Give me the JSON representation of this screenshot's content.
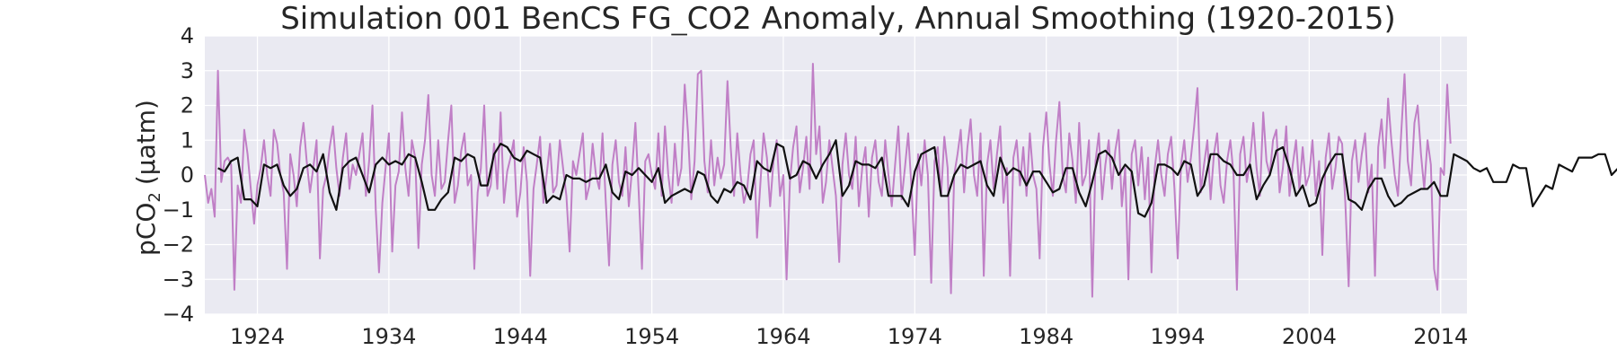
{
  "chart_data": {
    "type": "line",
    "title": "Simulation 001 BenCS FG_CO2  Anomaly, Annual Smoothing (1920-2015)",
    "ylabel": "pCO",
    "ylabel_subscript": "2",
    "ylabel_unit": "(μatm)",
    "xlabel": "",
    "xlim": [
      1920,
      2016
    ],
    "ylim": [
      -4,
      4
    ],
    "x_ticks": [
      1924,
      1934,
      1944,
      1954,
      1964,
      1974,
      1984,
      1994,
      2004,
      2014
    ],
    "y_ticks": [
      -4,
      -3,
      -2,
      -1,
      0,
      1,
      2,
      3,
      4
    ],
    "grid": true,
    "legend": "none",
    "colors": {
      "background": "#eaeaf2",
      "grid": "#ffffff",
      "monthly": "#c07fc6",
      "smoothed": "#111111"
    },
    "series": [
      {
        "role": "monthly",
        "x_start": 1920.0,
        "x_step": 0.25,
        "values": [
          0.0,
          -0.8,
          -0.4,
          -1.2,
          3.0,
          -0.2,
          0.4,
          0.5,
          0.3,
          -3.3,
          -0.3,
          -0.8,
          1.3,
          0.6,
          -0.4,
          -1.4,
          -0.3,
          0.2,
          1.0,
          0.0,
          -0.6,
          1.3,
          0.9,
          0.0,
          -0.5,
          -2.7,
          0.6,
          0.0,
          -0.9,
          0.8,
          1.5,
          0.4,
          -0.5,
          0.2,
          1.0,
          -2.4,
          -0.4,
          0.0,
          0.8,
          1.4,
          0.2,
          -0.6,
          0.5,
          1.2,
          -0.4,
          0.3,
          0.0,
          0.6,
          1.2,
          -0.6,
          0.4,
          2.0,
          -1.0,
          -2.8,
          -0.8,
          0.2,
          1.2,
          -2.2,
          -0.3,
          0.1,
          1.8,
          0.2,
          -0.6,
          1.0,
          0.5,
          -2.1,
          0.3,
          1.0,
          2.3,
          0.0,
          -0.6,
          1.0,
          -0.4,
          -0.2,
          1.0,
          2.0,
          -0.8,
          -0.3,
          0.7,
          1.2,
          -0.3,
          0.0,
          -2.7,
          -0.5,
          0.2,
          2.0,
          -0.6,
          -0.3,
          0.9,
          -0.4,
          1.8,
          -0.8,
          0.1,
          0.5,
          1.0,
          -1.2,
          -0.5,
          0.8,
          -0.2,
          -2.9,
          -0.4,
          0.3,
          1.1,
          -0.8,
          0.0,
          0.9,
          -0.5,
          -0.3,
          1.0,
          0.2,
          -0.6,
          -2.2,
          0.4,
          0.0,
          0.6,
          1.2,
          -0.7,
          -0.3,
          0.9,
          0.0,
          -0.4,
          1.2,
          -0.8,
          -2.6,
          0.3,
          1.0,
          -0.2,
          -0.6,
          0.8,
          -0.9,
          0.2,
          1.5,
          -0.5,
          -2.7,
          0.4,
          0.6,
          0.0,
          -0.4,
          1.2,
          -0.6,
          1.4,
          0.0,
          -0.8,
          0.9,
          -0.3,
          0.2,
          2.6,
          1.2,
          -0.7,
          0.4,
          2.9,
          3.0,
          0.4,
          -0.5,
          1.0,
          -0.3,
          0.5,
          -0.1,
          0.3,
          2.7,
          0.8,
          -0.6,
          1.2,
          0.0,
          -0.8,
          -0.4,
          0.6,
          1.0,
          -1.8,
          -0.3,
          1.2,
          0.5,
          -0.9,
          0.4,
          1.0,
          -0.6,
          0.0,
          -3.0,
          -0.2,
          0.8,
          1.4,
          -0.5,
          0.2,
          1.1,
          -0.4,
          3.2,
          0.6,
          1.4,
          -0.8,
          -0.2,
          1.0,
          0.2,
          -0.6,
          -2.5,
          0.3,
          1.2,
          0.0,
          -0.4,
          1.1,
          -0.9,
          0.2,
          0.8,
          -1.2,
          0.5,
          1.0,
          -0.2,
          -0.6,
          1.0,
          0.0,
          -0.9,
          0.3,
          1.4,
          -0.7,
          0.2,
          1.2,
          -0.4,
          -2.3,
          0.6,
          -0.3,
          1.0,
          0.0,
          -3.1,
          0.4,
          0.8,
          -0.6,
          1.1,
          0.2,
          -3.4,
          0.0,
          0.6,
          1.3,
          -0.5,
          0.8,
          1.6,
          0.0,
          -0.6,
          1.2,
          -2.9,
          0.3,
          1.0,
          -0.4,
          0.6,
          1.4,
          -0.8,
          0.2,
          -2.9,
          0.5,
          1.0,
          -0.3,
          0.8,
          -0.6,
          1.2,
          0.0,
          -0.4,
          -2.4,
          0.8,
          1.8,
          0.3,
          -0.6,
          1.0,
          2.1,
          0.0,
          -0.5,
          1.2,
          0.4,
          -0.8,
          1.5,
          -0.3,
          0.0,
          1.0,
          -3.5,
          0.4,
          1.2,
          -0.7,
          0.3,
          1.0,
          -0.4,
          0.7,
          1.3,
          -0.9,
          0.2,
          -3.0,
          0.6,
          1.0,
          -0.3,
          0.8,
          -0.7,
          0.5,
          -2.8,
          0.2,
          1.0,
          0.0,
          -0.6,
          0.6,
          1.1,
          -0.4,
          -2.4,
          0.3,
          1.0,
          -0.2,
          0.5,
          1.4,
          2.5,
          -0.5,
          0.3,
          1.0,
          -0.7,
          0.6,
          1.2,
          -0.3,
          -0.8,
          0.4,
          1.0,
          0.0,
          -3.3,
          0.6,
          1.1,
          -0.2,
          0.4,
          1.5,
          0.2,
          -0.6,
          1.8,
          0.4,
          0.0,
          1.0,
          1.3,
          -0.5,
          0.2,
          1.4,
          -0.6,
          0.3,
          1.0,
          -0.4,
          0.8,
          -0.3,
          0.0,
          1.0,
          -0.6,
          0.4,
          -2.3,
          0.5,
          1.2,
          -0.4,
          0.2,
          1.1,
          0.9,
          -0.8,
          -3.2,
          0.4,
          1.0,
          -0.2,
          0.6,
          1.2,
          -0.5,
          0.3,
          -2.9,
          0.8,
          1.6,
          0.2,
          2.2,
          1.0,
          0.0,
          -0.6,
          1.2,
          2.9,
          0.4,
          -0.3,
          1.5,
          2.0,
          0.6,
          -0.4,
          1.0,
          0.3,
          -2.7,
          -3.3,
          0.2,
          0.0,
          2.6,
          0.9
        ]
      },
      {
        "role": "smoothed",
        "x_start": 1921.0,
        "x_step": 0.5,
        "values": [
          0.2,
          0.1,
          0.4,
          0.5,
          -0.7,
          -0.7,
          -0.9,
          0.3,
          0.2,
          0.3,
          -0.3,
          -0.6,
          -0.4,
          0.2,
          0.3,
          0.1,
          0.6,
          -0.5,
          -1.0,
          0.2,
          0.4,
          0.5,
          0.0,
          -0.5,
          0.3,
          0.5,
          0.3,
          0.4,
          0.3,
          0.6,
          0.5,
          -0.2,
          -1.0,
          -1.0,
          -0.7,
          -0.5,
          0.5,
          0.4,
          0.6,
          0.5,
          -0.3,
          -0.3,
          0.6,
          0.9,
          0.8,
          0.5,
          0.4,
          0.7,
          0.6,
          0.5,
          -0.8,
          -0.6,
          -0.7,
          0.0,
          -0.1,
          -0.1,
          -0.2,
          -0.1,
          -0.1,
          0.3,
          -0.5,
          -0.7,
          0.1,
          0.0,
          0.2,
          0.0,
          -0.2,
          0.2,
          -0.8,
          -0.6,
          -0.5,
          -0.4,
          -0.5,
          0.1,
          0.0,
          -0.6,
          -0.8,
          -0.4,
          -0.5,
          -0.2,
          -0.3,
          -0.7,
          0.4,
          0.2,
          0.1,
          0.9,
          0.8,
          -0.1,
          0.0,
          0.4,
          0.3,
          -0.1,
          0.3,
          0.6,
          1.0,
          -0.6,
          -0.3,
          0.4,
          0.3,
          0.3,
          0.2,
          0.5,
          -0.6,
          -0.6,
          -0.6,
          -0.9,
          0.1,
          0.6,
          0.7,
          0.8,
          -0.6,
          -0.6,
          0.0,
          0.3,
          0.2,
          0.3,
          0.4,
          -0.3,
          -0.6,
          0.5,
          0.0,
          0.2,
          0.1,
          -0.3,
          0.1,
          0.1,
          -0.2,
          -0.5,
          -0.4,
          0.2,
          0.2,
          -0.5,
          -0.9,
          -0.2,
          0.6,
          0.7,
          0.5,
          0.0,
          0.3,
          0.1,
          -1.1,
          -1.2,
          -0.8,
          0.3,
          0.3,
          0.2,
          0.0,
          0.4,
          0.3,
          -0.6,
          -0.3,
          0.6,
          0.6,
          0.4,
          0.3,
          0.0,
          0.0,
          0.3,
          -0.7,
          -0.3,
          0.0,
          0.7,
          0.8,
          0.2,
          -0.6,
          -0.3,
          -0.9,
          -0.8,
          -0.1,
          0.3,
          0.6,
          0.6,
          -0.7,
          -0.8,
          -1.0,
          -0.4,
          -0.1,
          -0.1,
          -0.6,
          -0.9,
          -0.8,
          -0.6,
          -0.5,
          -0.4,
          -0.4,
          -0.2,
          -0.6,
          -0.6,
          0.6,
          0.5,
          0.4,
          0.2,
          0.1,
          0.2,
          -0.2,
          -0.2,
          -0.2,
          0.3,
          0.2,
          0.2,
          -0.9,
          -0.6,
          -0.3,
          -0.4,
          0.3,
          0.2,
          0.1,
          0.5,
          0.5,
          0.5,
          0.6,
          0.6,
          0.0,
          0.2,
          0.2,
          -0.1,
          -0.2,
          -0.4,
          -0.5,
          0.1,
          0.1,
          -0.6,
          -0.9,
          -0.7,
          0.5,
          0.6,
          0.2,
          -0.3,
          -0.4,
          -0.5,
          0.1,
          0.5,
          0.4,
          0.3,
          0.7,
          0.6,
          0.9,
          0.8,
          0.8,
          0.7,
          0.7,
          -0.7,
          -1.0,
          -1.1,
          0.2
        ]
      }
    ]
  }
}
